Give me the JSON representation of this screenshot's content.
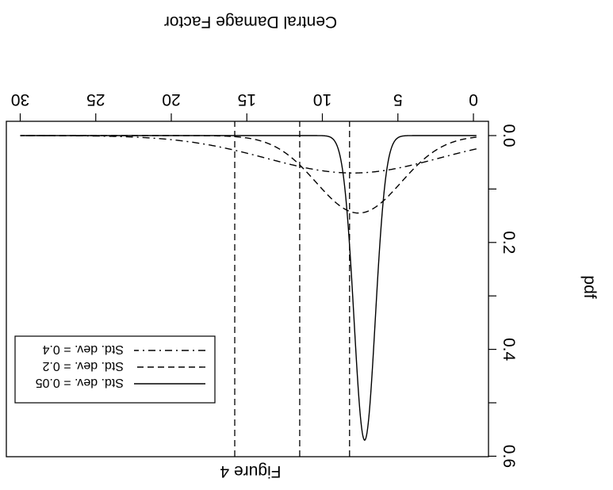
{
  "chart_data": {
    "type": "line",
    "orientation": "rotated-180",
    "title": "",
    "caption": "Figure 4",
    "xlabel": "Central Damage Factor",
    "ylabel": "pdf",
    "xlim": [
      0,
      31
    ],
    "ylim": [
      0,
      0.59
    ],
    "x_ticks": [
      "0",
      "5",
      "10",
      "15",
      "20",
      "25",
      "30"
    ],
    "y_ticks": [
      "0.0",
      "0.2",
      "0.4",
      "0.6"
    ],
    "y_tick_values": [
      0,
      0.1,
      0.2,
      0.3,
      0.4,
      0.5,
      0.6
    ],
    "grid": false,
    "legend_position": "bottom-left",
    "series": [
      {
        "name": "Std. dev. = 0.05",
        "style": "solid",
        "mean": 7.2,
        "sd_x": 0.7,
        "peak": 0.57
      },
      {
        "name": "Std. dev. = 0.2",
        "style": "dashed",
        "mean": 7.6,
        "sd_x": 2.8,
        "peak": 0.145
      },
      {
        "name": "Std. dev. = 0.4",
        "style": "dashdot",
        "mean": 8.0,
        "sd_x": 5.7,
        "peak": 0.07
      }
    ],
    "vertical_lines": [
      {
        "x": 8.2,
        "style": "dashed"
      },
      {
        "x": 11.5,
        "style": "dashed"
      },
      {
        "x": 15.8,
        "style": "dashed"
      }
    ]
  }
}
